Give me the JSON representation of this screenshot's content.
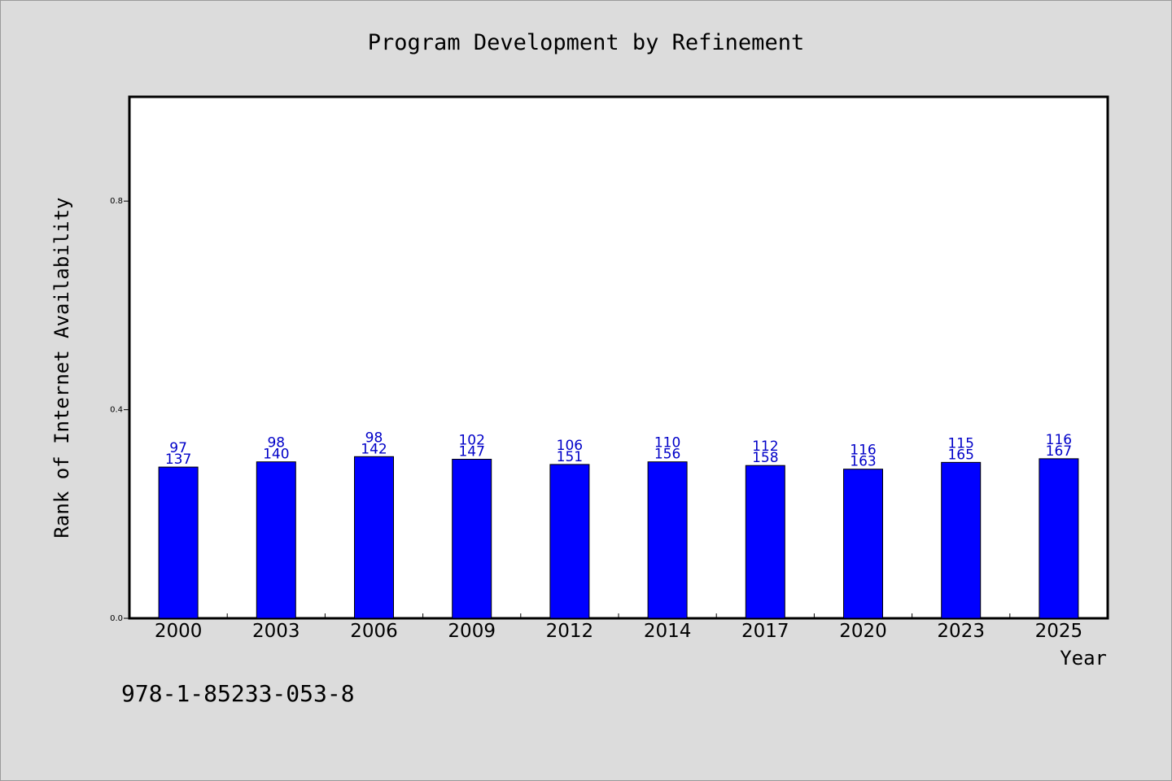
{
  "chart_data": {
    "type": "bar",
    "title": "Program Development by Refinement",
    "xlabel": "Year",
    "ylabel": "Rank of Internet Availability",
    "ylim": [
      0,
      1.0
    ],
    "yticks": [
      "0.0",
      "0.4",
      "0.8"
    ],
    "grid": false,
    "bar_color": "#0000ff",
    "label_color": "#0000c8",
    "categories": [
      "2000",
      "2003",
      "2006",
      "2009",
      "2012",
      "2014",
      "2017",
      "2020",
      "2023",
      "2025"
    ],
    "values": [
      0.29,
      0.3,
      0.31,
      0.305,
      0.295,
      0.3,
      0.293,
      0.286,
      0.299,
      0.306
    ],
    "labels_top": [
      "97",
      "98",
      "98",
      "102",
      "106",
      "110",
      "112",
      "116",
      "115",
      "116"
    ],
    "labels_bottom": [
      "137",
      "140",
      "142",
      "147",
      "151",
      "156",
      "158",
      "163",
      "165",
      "167"
    ]
  },
  "footer": {
    "isbn": "978-1-85233-053-8"
  }
}
